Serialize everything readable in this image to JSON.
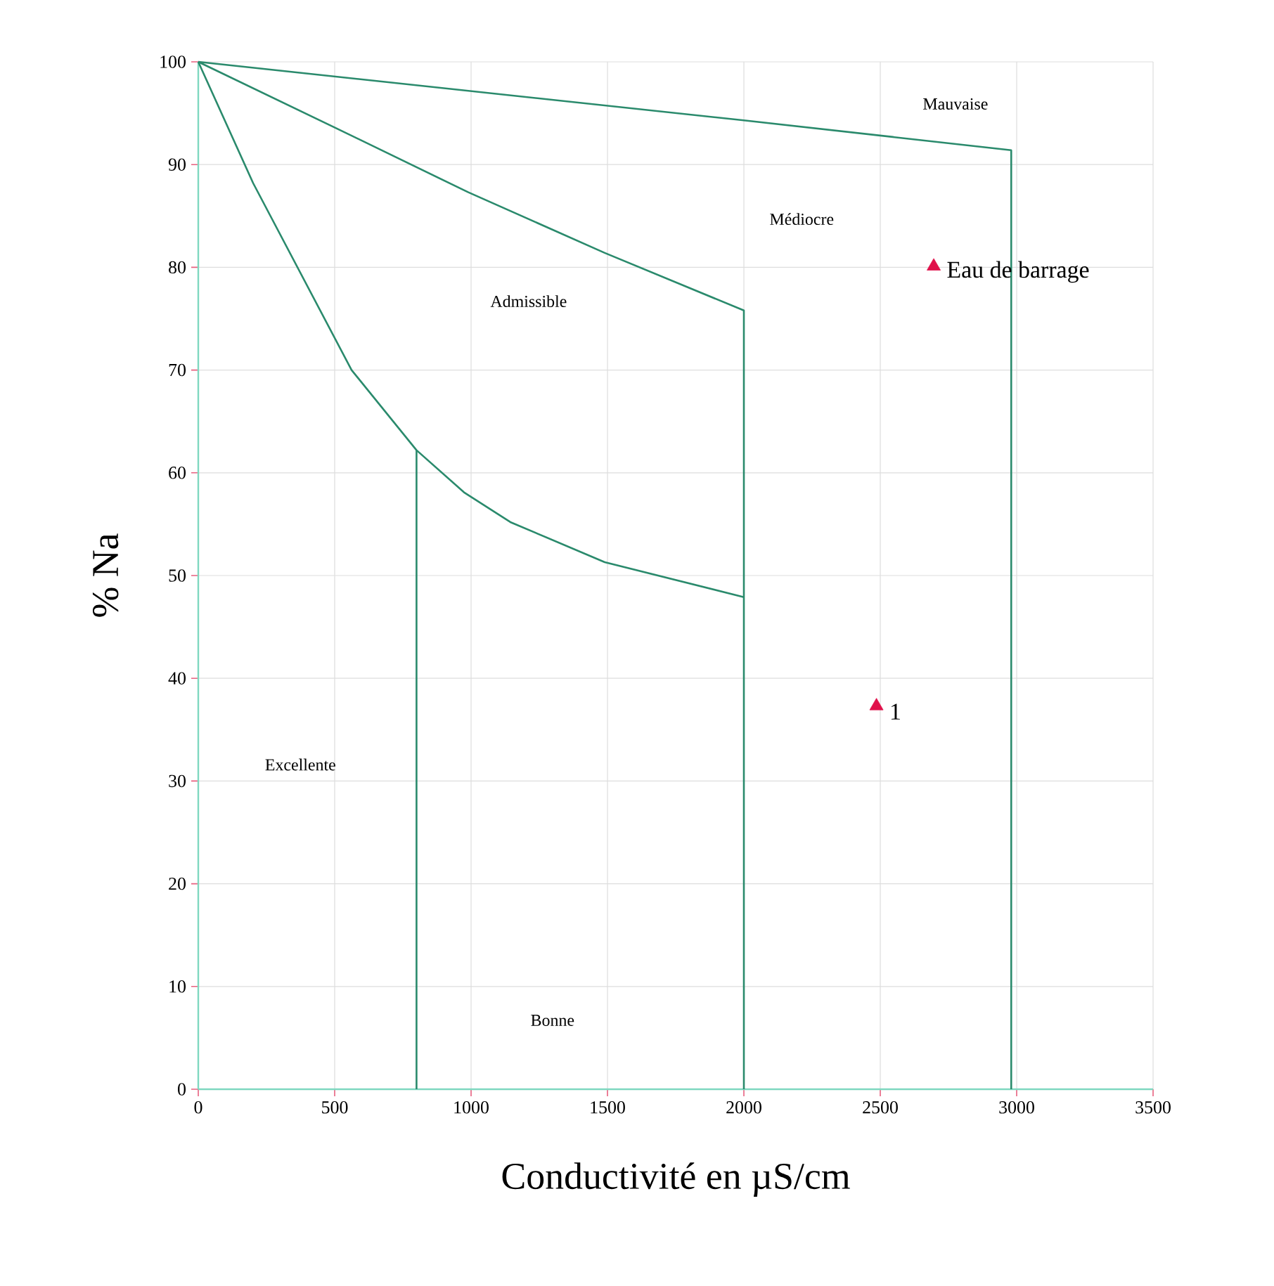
{
  "chart_data": {
    "type": "line",
    "xlabel": "Conductivité en µS/cm",
    "ylabel": "% Na",
    "xlim": [
      0,
      3500
    ],
    "ylim": [
      0,
      100
    ],
    "xticks": [
      0,
      500,
      1000,
      1500,
      2000,
      2500,
      3000,
      3500
    ],
    "yticks": [
      0,
      10,
      20,
      30,
      40,
      50,
      60,
      70,
      80,
      90,
      100
    ],
    "grid": true,
    "marker": "none",
    "line_style": "solid",
    "series": [
      {
        "color": "#2a8a6c",
        "x": [
          0,
          201,
          562,
          800,
          974,
          1144,
          1490,
          2000
        ],
        "values": [
          100,
          88.2,
          70,
          62.2,
          58.1,
          55.2,
          51.3,
          47.9
        ]
      },
      {
        "color": "#2a8a6c",
        "x": [
          800,
          800
        ],
        "values": [
          62.2,
          0
        ]
      },
      {
        "color": "#2a8a6c",
        "x": [
          0,
          493,
          990,
          1490,
          2000,
          2000
        ],
        "values": [
          100,
          93.7,
          87.3,
          81.4,
          75.8,
          0
        ]
      },
      {
        "color": "#2a8a6c",
        "x": [
          0,
          2000,
          2980,
          2980
        ],
        "values": [
          100,
          94.3,
          91.4,
          0
        ]
      },
      {
        "type": "scatter",
        "name": "Eau de barrage",
        "marker": "triangle",
        "color": "#e0104a",
        "x": [
          2696
        ],
        "values": [
          80.1
        ]
      },
      {
        "type": "scatter",
        "name": "1",
        "marker": "triangle",
        "color": "#e0104a",
        "x": [
          2486
        ],
        "values": [
          37.3
        ]
      }
    ],
    "annotations": [
      "Mauvaise",
      "Médiocre",
      "Admissible",
      "Excellente",
      "Bonne"
    ]
  }
}
